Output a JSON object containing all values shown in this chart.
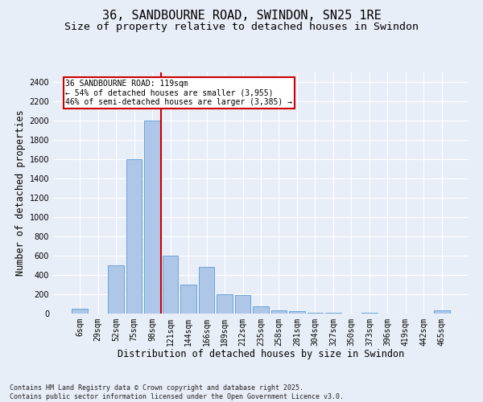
{
  "title": "36, SANDBOURNE ROAD, SWINDON, SN25 1RE",
  "subtitle": "Size of property relative to detached houses in Swindon",
  "xlabel": "Distribution of detached houses by size in Swindon",
  "ylabel": "Number of detached properties",
  "footnote": "Contains HM Land Registry data © Crown copyright and database right 2025.\nContains public sector information licensed under the Open Government Licence v3.0.",
  "bar_labels": [
    "6sqm",
    "29sqm",
    "52sqm",
    "75sqm",
    "98sqm",
    "121sqm",
    "144sqm",
    "166sqm",
    "189sqm",
    "212sqm",
    "235sqm",
    "258sqm",
    "281sqm",
    "304sqm",
    "327sqm",
    "350sqm",
    "373sqm",
    "396sqm",
    "419sqm",
    "442sqm",
    "465sqm"
  ],
  "bar_values": [
    50,
    0,
    500,
    1600,
    2000,
    600,
    300,
    480,
    200,
    190,
    75,
    30,
    25,
    10,
    10,
    0,
    10,
    0,
    0,
    0,
    30
  ],
  "bar_color": "#aec6e8",
  "bar_edge_color": "#5b9bd5",
  "annotation_text": "36 SANDBOURNE ROAD: 119sqm\n← 54% of detached houses are smaller (3,955)\n46% of semi-detached houses are larger (3,385) →",
  "annotation_box_color": "#ffffff",
  "annotation_border_color": "#cc0000",
  "vline_x_index": 4.5,
  "vline_color": "#cc0000",
  "ylim": [
    0,
    2500
  ],
  "yticks": [
    0,
    200,
    400,
    600,
    800,
    1000,
    1200,
    1400,
    1600,
    1800,
    2000,
    2200,
    2400
  ],
  "background_color": "#e8eef8",
  "grid_color": "#ffffff",
  "title_fontsize": 11,
  "subtitle_fontsize": 9.5,
  "label_fontsize": 8.5,
  "tick_fontsize": 7,
  "footnote_fontsize": 6
}
